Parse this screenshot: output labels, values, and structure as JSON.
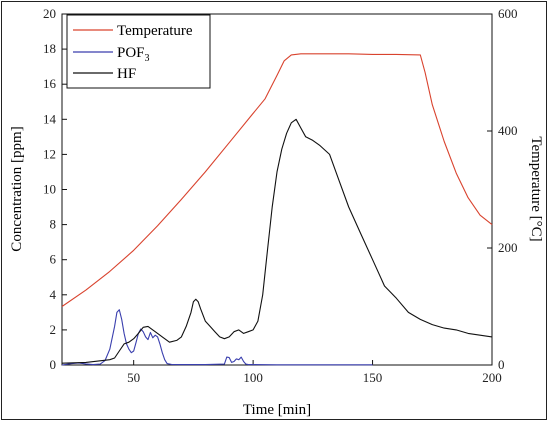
{
  "chart_data": {
    "type": "line",
    "title": "",
    "xlabel": "Time [min]",
    "ylabel_left": "Concentration [ppm]",
    "ylabel_right": "Temperature [°C]",
    "xlim": [
      20,
      200
    ],
    "ylim_left": [
      0,
      20
    ],
    "ylim_right": [
      0,
      600
    ],
    "x_ticks": [
      50,
      100,
      150,
      200
    ],
    "y_left_ticks": [
      0,
      2,
      4,
      6,
      8,
      10,
      12,
      14,
      16,
      18,
      20
    ],
    "y_right_ticks": [
      0,
      200,
      400,
      600
    ],
    "grid": false,
    "legend": {
      "placement": "top-left"
    },
    "colors": {
      "Temperature": "#d9432e",
      "POF3": "#3a3fae",
      "HF": "#111111"
    },
    "series": [
      {
        "name": "Temperature",
        "legend_label": "Temperature",
        "axis": "right",
        "x": [
          20,
          30,
          40,
          50,
          60,
          70,
          80,
          90,
          100,
          105,
          110,
          113,
          116,
          120,
          130,
          140,
          150,
          160,
          170,
          172,
          175,
          180,
          185,
          190,
          195,
          200
        ],
        "y": [
          100,
          128,
          160,
          196,
          238,
          283,
          330,
          380,
          430,
          455,
          495,
          520,
          530,
          532,
          532,
          532,
          531,
          531,
          530,
          500,
          445,
          382,
          328,
          286,
          256,
          240
        ]
      },
      {
        "name": "POF3",
        "legend_label": "POF",
        "legend_sub": "3",
        "axis": "left",
        "x": [
          20,
          24,
          27,
          30,
          33,
          36,
          38,
          40,
          42,
          43,
          44,
          45,
          46,
          47,
          48,
          49,
          50,
          51,
          52,
          53,
          54,
          55,
          56,
          57,
          58,
          59,
          60,
          61,
          62,
          63,
          64,
          66,
          70,
          80,
          88,
          89,
          90,
          91,
          92,
          93,
          94,
          95,
          96,
          97,
          98,
          100,
          110,
          130,
          150
        ],
        "y": [
          0,
          0.08,
          0.12,
          0.06,
          0.02,
          0.05,
          0.25,
          0.9,
          2.2,
          3.0,
          3.15,
          2.6,
          1.8,
          1.2,
          0.9,
          0.7,
          0.8,
          1.3,
          1.8,
          2.05,
          1.9,
          1.6,
          1.45,
          1.85,
          1.55,
          1.7,
          1.6,
          1.2,
          0.7,
          0.3,
          0.08,
          0.03,
          0.02,
          0.02,
          0.05,
          0.45,
          0.42,
          0.15,
          0.2,
          0.35,
          0.3,
          0.45,
          0.2,
          0.05,
          0.02,
          0.02,
          0.01,
          0.01,
          0.01
        ]
      },
      {
        "name": "HF",
        "legend_label": "HF",
        "axis": "left",
        "x": [
          20,
          30,
          40,
          42,
          44,
          46,
          48,
          50,
          52,
          54,
          56,
          58,
          60,
          62,
          65,
          68,
          70,
          72,
          74,
          75,
          76,
          77,
          78,
          80,
          82,
          84,
          86,
          88,
          90,
          92,
          94,
          96,
          98,
          100,
          102,
          104,
          106,
          108,
          110,
          112,
          114,
          116,
          118,
          120,
          122,
          125,
          128,
          132,
          136,
          140,
          145,
          150,
          155,
          160,
          165,
          170,
          175,
          180,
          185,
          190,
          195,
          200
        ],
        "y": [
          0.1,
          0.15,
          0.3,
          0.4,
          0.8,
          1.2,
          1.3,
          1.5,
          1.8,
          2.15,
          2.2,
          2.0,
          1.8,
          1.6,
          1.3,
          1.4,
          1.6,
          2.2,
          3.0,
          3.6,
          3.75,
          3.6,
          3.2,
          2.5,
          2.2,
          1.9,
          1.6,
          1.5,
          1.6,
          1.9,
          2.0,
          1.8,
          1.9,
          2.0,
          2.5,
          4.0,
          6.5,
          9.0,
          11.0,
          12.3,
          13.2,
          13.8,
          14.0,
          13.5,
          13.0,
          12.8,
          12.5,
          12.0,
          10.5,
          9.0,
          7.5,
          6.0,
          4.5,
          3.8,
          3.0,
          2.6,
          2.3,
          2.1,
          2.0,
          1.8,
          1.7,
          1.6
        ]
      }
    ]
  }
}
